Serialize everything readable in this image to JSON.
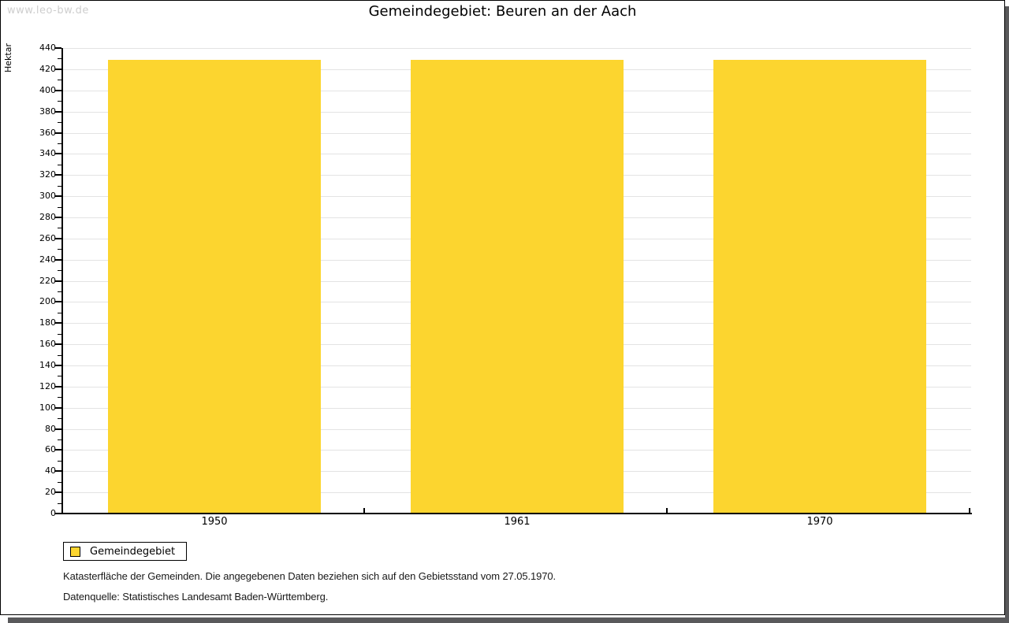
{
  "page": {
    "watermark": "www.leo-bw.de",
    "footnote1": "Katasterfläche der Gemeinden. Die angegebenen Daten beziehen sich auf den Gebietsstand vom 27.05.1970.",
    "footnote2": "Datenquelle: Statistisches Landesamt Baden-Württemberg."
  },
  "chart_data": {
    "type": "bar",
    "title": "Gemeindegebiet: Beuren an der Aach",
    "categories": [
      "1950",
      "1961",
      "1970"
    ],
    "series": [
      {
        "name": "Gemeindegebiet",
        "values": [
          429,
          429,
          429
        ],
        "color": "#fcd52f"
      }
    ],
    "xlabel": "",
    "ylabel": "Hektar",
    "ylim": [
      0,
      440
    ],
    "ytick_major": 20,
    "ytick_minor": 10,
    "grid": "horizontal-major-lines",
    "legend_position": "bottom-left",
    "colors": {
      "bar": "#fcd52f",
      "gridline": "#e3e3e3",
      "axis": "#000000",
      "watermark": "#cecece",
      "frame_shadow": "#59595b"
    }
  }
}
